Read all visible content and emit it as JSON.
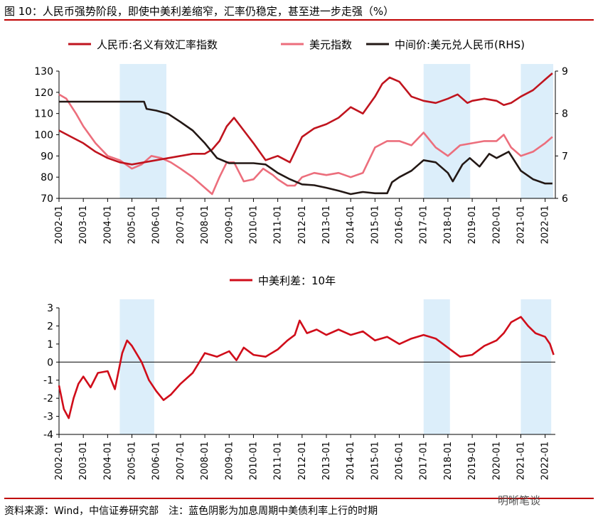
{
  "header": {
    "title": "图 10：人民币强势阶段，即使中美利差缩窄，汇率仍稳定，甚至进一步走强（%）"
  },
  "footer": {
    "source": "资料来源：Wind，中信证券研究部　注：蓝色阴影为加息周期中美债利率上行的时期"
  },
  "watermark": {
    "text": "明晰笔谈"
  },
  "colors": {
    "cny_index": "#c0141e",
    "usd_index": "#ec6e7c",
    "usd_cny": "#231815",
    "spread": "#d00d1a",
    "shade": "#dceefa"
  },
  "chart_data": [
    {
      "type": "line",
      "x_ticks": [
        "2002-01",
        "2003-01",
        "2004-01",
        "2005-01",
        "2006-01",
        "2007-01",
        "2008-01",
        "2009-01",
        "2010-01",
        "2011-01",
        "2012-01",
        "2013-01",
        "2014-01",
        "2015-01",
        "2016-01",
        "2017-01",
        "2018-01",
        "2019-01",
        "2020-01",
        "2021-01",
        "2022-01"
      ],
      "ylim": [
        70,
        130
      ],
      "y_ticks": [
        "70",
        "80",
        "90",
        "100",
        "110",
        "120",
        "130"
      ],
      "y2lim": [
        6,
        9
      ],
      "y2_ticks": [
        "6",
        "7",
        "8",
        "9"
      ],
      "shaded_periods": [
        [
          "2004-07",
          "2006-06"
        ],
        [
          "2017-01",
          "2018-12"
        ],
        [
          "2021-01",
          "2022-05"
        ]
      ],
      "series": [
        {
          "name": "人民币:名义有效汇率指数",
          "axis": "left",
          "x": [
            2002.0,
            2002.5,
            2003.0,
            2003.5,
            2004.0,
            2004.5,
            2005.0,
            2005.5,
            2006.0,
            2006.5,
            2007.0,
            2007.5,
            2008.0,
            2008.3,
            2008.6,
            2008.9,
            2009.2,
            2009.6,
            2010.0,
            2010.5,
            2011.0,
            2011.5,
            2012.0,
            2012.5,
            2013.0,
            2013.5,
            2014.0,
            2014.5,
            2015.0,
            2015.3,
            2015.6,
            2016.0,
            2016.5,
            2017.0,
            2017.5,
            2018.0,
            2018.4,
            2018.8,
            2019.0,
            2019.5,
            2020.0,
            2020.3,
            2020.6,
            2021.0,
            2021.5,
            2022.0,
            2022.3
          ],
          "y": [
            102,
            99,
            96,
            92,
            89,
            87,
            86,
            87,
            88,
            89,
            90,
            91,
            91,
            93,
            97,
            104,
            108,
            102,
            96,
            88,
            90,
            87,
            99,
            103,
            105,
            108,
            113,
            110,
            118,
            124,
            127,
            125,
            118,
            116,
            115,
            117,
            119,
            115,
            116,
            117,
            116,
            114,
            115,
            118,
            121,
            126,
            129
          ]
        },
        {
          "name": "美元指数",
          "axis": "left",
          "x": [
            2002.0,
            2002.3,
            2002.7,
            2003.0,
            2003.5,
            2004.0,
            2004.5,
            2005.0,
            2005.4,
            2005.8,
            2006.2,
            2006.6,
            2007.0,
            2007.5,
            2008.0,
            2008.3,
            2008.6,
            2008.9,
            2009.2,
            2009.6,
            2010.0,
            2010.4,
            2010.8,
            2011.0,
            2011.4,
            2011.7,
            2012.0,
            2012.5,
            2013.0,
            2013.5,
            2014.0,
            2014.5,
            2015.0,
            2015.5,
            2016.0,
            2016.5,
            2017.0,
            2017.5,
            2018.0,
            2018.5,
            2019.0,
            2019.5,
            2020.0,
            2020.3,
            2020.6,
            2021.0,
            2021.5,
            2022.0,
            2022.3
          ],
          "y": [
            119,
            117,
            110,
            104,
            96,
            90,
            88,
            84,
            86,
            90,
            89,
            87,
            84,
            80,
            75,
            72,
            80,
            87,
            87,
            78,
            79,
            84,
            81,
            79,
            76,
            76,
            80,
            82,
            81,
            82,
            80,
            82,
            94,
            97,
            97,
            95,
            101,
            94,
            90,
            95,
            96,
            97,
            97,
            100,
            94,
            90,
            92,
            96,
            99
          ]
        },
        {
          "name": "中间价:美元兑人民币(RHS)",
          "axis": "right",
          "x": [
            2002.0,
            2004.0,
            2005.5,
            2005.6,
            2006.0,
            2006.5,
            2007.0,
            2007.5,
            2008.0,
            2008.5,
            2009.0,
            2009.5,
            2010.0,
            2010.5,
            2011.0,
            2011.5,
            2012.0,
            2012.5,
            2013.0,
            2013.5,
            2014.0,
            2014.5,
            2015.0,
            2015.5,
            2015.7,
            2016.0,
            2016.5,
            2017.0,
            2017.5,
            2018.0,
            2018.2,
            2018.6,
            2018.9,
            2019.3,
            2019.7,
            2020.0,
            2020.5,
            2021.0,
            2021.5,
            2022.0,
            2022.3
          ],
          "y": [
            8.28,
            8.28,
            8.28,
            8.11,
            8.07,
            7.99,
            7.8,
            7.6,
            7.3,
            6.95,
            6.83,
            6.83,
            6.83,
            6.8,
            6.6,
            6.45,
            6.33,
            6.31,
            6.25,
            6.18,
            6.1,
            6.15,
            6.12,
            6.12,
            6.38,
            6.5,
            6.65,
            6.9,
            6.85,
            6.6,
            6.4,
            6.8,
            6.95,
            6.75,
            7.05,
            6.95,
            7.1,
            6.65,
            6.45,
            6.35,
            6.35
          ]
        }
      ]
    },
    {
      "type": "line",
      "x_ticks": [
        "2002-01",
        "2003-01",
        "2004-01",
        "2005-01",
        "2006-01",
        "2007-01",
        "2008-01",
        "2009-01",
        "2010-01",
        "2011-01",
        "2012-01",
        "2013-01",
        "2014-01",
        "2015-01",
        "2016-01",
        "2017-01",
        "2018-01",
        "2019-01",
        "2020-01",
        "2021-01",
        "2022-01"
      ],
      "ylim": [
        -4,
        3
      ],
      "y_ticks": [
        "-4",
        "-3",
        "-2",
        "-1",
        "0",
        "1",
        "2",
        "3"
      ],
      "shaded_periods": [
        [
          "2004-07",
          "2005-12"
        ],
        [
          "2017-01",
          "2018-02"
        ],
        [
          "2021-01",
          "2022-04"
        ]
      ],
      "series": [
        {
          "name": "中美利差：10年",
          "x": [
            2002.0,
            2002.2,
            2002.4,
            2002.6,
            2002.8,
            2003.0,
            2003.3,
            2003.6,
            2004.0,
            2004.3,
            2004.6,
            2004.8,
            2005.0,
            2005.4,
            2005.7,
            2006.0,
            2006.3,
            2006.6,
            2007.0,
            2007.5,
            2008.0,
            2008.5,
            2009.0,
            2009.3,
            2009.6,
            2010.0,
            2010.5,
            2011.0,
            2011.4,
            2011.7,
            2011.9,
            2012.2,
            2012.6,
            2013.0,
            2013.5,
            2014.0,
            2014.5,
            2015.0,
            2015.5,
            2016.0,
            2016.5,
            2017.0,
            2017.5,
            2018.0,
            2018.5,
            2019.0,
            2019.5,
            2020.0,
            2020.3,
            2020.6,
            2021.0,
            2021.3,
            2021.6,
            2022.0,
            2022.2,
            2022.35
          ],
          "y": [
            -1.3,
            -2.6,
            -3.1,
            -2.0,
            -1.2,
            -0.8,
            -1.4,
            -0.6,
            -0.5,
            -1.5,
            0.5,
            1.2,
            0.9,
            0.0,
            -1.0,
            -1.6,
            -2.1,
            -1.8,
            -1.2,
            -0.6,
            0.5,
            0.3,
            0.6,
            0.1,
            0.8,
            0.4,
            0.3,
            0.7,
            1.2,
            1.5,
            2.3,
            1.6,
            1.8,
            1.5,
            1.8,
            1.5,
            1.7,
            1.2,
            1.4,
            1.0,
            1.3,
            1.5,
            1.3,
            0.8,
            0.3,
            0.4,
            0.9,
            1.2,
            1.6,
            2.2,
            2.5,
            2.0,
            1.6,
            1.4,
            1.0,
            0.4
          ]
        }
      ]
    }
  ]
}
